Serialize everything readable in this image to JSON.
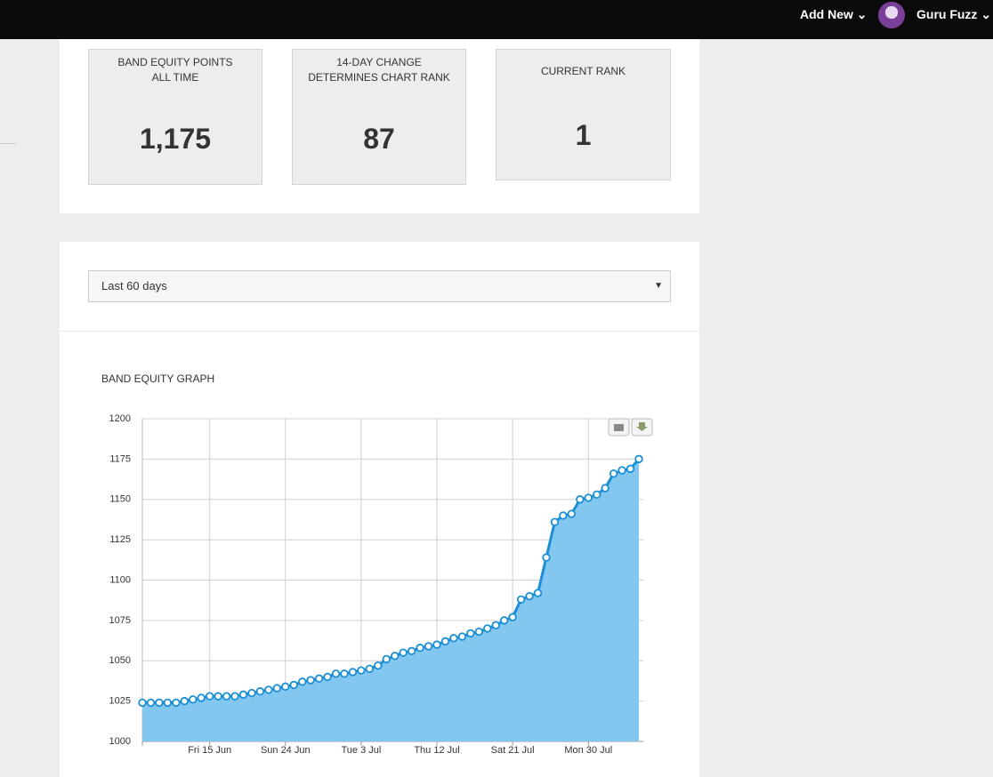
{
  "header": {
    "add_new": "Add New",
    "user": "Guru Fuzz"
  },
  "stats": [
    {
      "label": [
        "BAND EQUITY POINTS",
        "ALL TIME"
      ],
      "value": "1,175"
    },
    {
      "label": [
        "14-DAY CHANGE",
        "DETERMINES CHART RANK"
      ],
      "value": "87"
    },
    {
      "label": [
        "CURRENT RANK"
      ],
      "value": "1"
    }
  ],
  "range_select": "Last 60 days",
  "chart_data": {
    "type": "area",
    "title": "BAND EQUITY GRAPH",
    "categories": [
      null,
      null,
      null,
      null,
      null,
      null,
      null,
      null,
      "Fri 15 Jun",
      null,
      null,
      null,
      null,
      null,
      null,
      null,
      null,
      "Sun 24 Jun",
      null,
      null,
      null,
      null,
      null,
      null,
      null,
      null,
      "Tue 3 Jul",
      null,
      null,
      null,
      null,
      null,
      null,
      null,
      null,
      "Thu 12 Jul",
      null,
      null,
      null,
      null,
      null,
      null,
      null,
      null,
      "Sat 21 Jul",
      null,
      null,
      null,
      null,
      null,
      null,
      null,
      null,
      "Mon 30 Jul",
      null,
      null,
      null,
      null,
      null,
      null
    ],
    "values": [
      1024,
      1024,
      1024,
      1024,
      1024,
      1025,
      1026,
      1027,
      1028,
      1028,
      1028,
      1028,
      1029,
      1030,
      1031,
      1032,
      1033,
      1034,
      1035,
      1037,
      1038,
      1039,
      1040,
      1042,
      1042,
      1043,
      1044,
      1045,
      1047,
      1051,
      1053,
      1055,
      1056,
      1058,
      1059,
      1060,
      1062,
      1064,
      1065,
      1067,
      1068,
      1070,
      1072,
      1075,
      1077,
      1088,
      1090,
      1092,
      1114,
      1136,
      1140,
      1141,
      1150,
      1151,
      1153,
      1157,
      1166,
      1168,
      1169,
      1175
    ],
    "color": "#1a8fd6",
    "area_color": "#83c7f0",
    "ylim": [
      1000,
      1200
    ],
    "yticks": [
      1000,
      1025,
      1050,
      1075,
      1100,
      1125,
      1150,
      1175,
      1200
    ],
    "grid": true
  }
}
